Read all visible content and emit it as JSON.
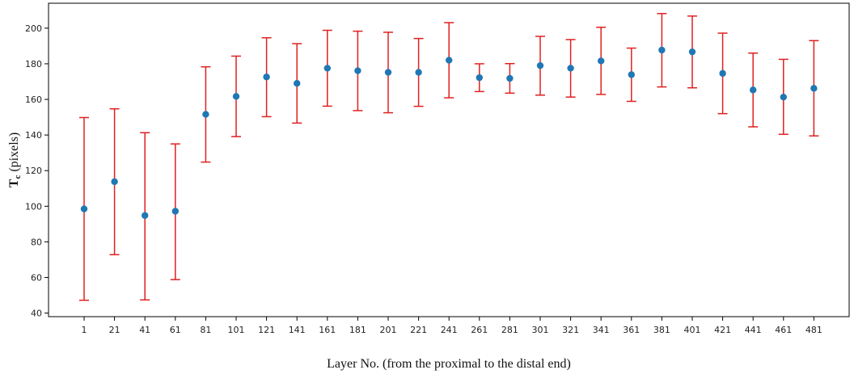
{
  "chart_data": {
    "type": "scatter",
    "xlabel": "Layer No. (from the proximal to the distal end)",
    "ylabel_main": "T",
    "ylabel_sub": "c",
    "ylabel_rest": " (pixels)",
    "ylim": [
      38,
      214
    ],
    "yticks": [
      40,
      60,
      80,
      100,
      120,
      140,
      160,
      180,
      200
    ],
    "categories": [
      "1",
      "21",
      "41",
      "61",
      "81",
      "101",
      "121",
      "141",
      "161",
      "181",
      "201",
      "221",
      "241",
      "261",
      "281",
      "301",
      "321",
      "341",
      "361",
      "381",
      "401",
      "421",
      "441",
      "461",
      "481"
    ],
    "values": [
      98.5,
      113.8,
      94.8,
      97.2,
      151.6,
      161.7,
      172.6,
      169.0,
      177.5,
      176.1,
      175.2,
      175.2,
      182.0,
      172.2,
      171.8,
      179.0,
      177.5,
      181.6,
      173.9,
      187.7,
      186.7,
      174.6,
      165.3,
      161.3,
      166.2
    ],
    "error_low": [
      47.2,
      72.8,
      47.4,
      58.8,
      124.8,
      139.1,
      150.3,
      146.7,
      156.2,
      153.7,
      152.5,
      156.1,
      160.9,
      164.4,
      163.5,
      162.4,
      161.3,
      162.8,
      158.9,
      167.0,
      166.5,
      152.0,
      144.6,
      140.4,
      139.5
    ],
    "error_high": [
      149.8,
      154.7,
      141.3,
      135.0,
      178.3,
      184.3,
      194.6,
      191.3,
      198.8,
      198.3,
      197.7,
      194.2,
      203.1,
      180.0,
      180.1,
      195.4,
      193.6,
      200.5,
      188.8,
      208.2,
      206.8,
      197.2,
      186.0,
      182.5,
      193.0
    ],
    "point_color": "#1f77b4",
    "errorbar_color": "#e02020",
    "grid": false
  }
}
